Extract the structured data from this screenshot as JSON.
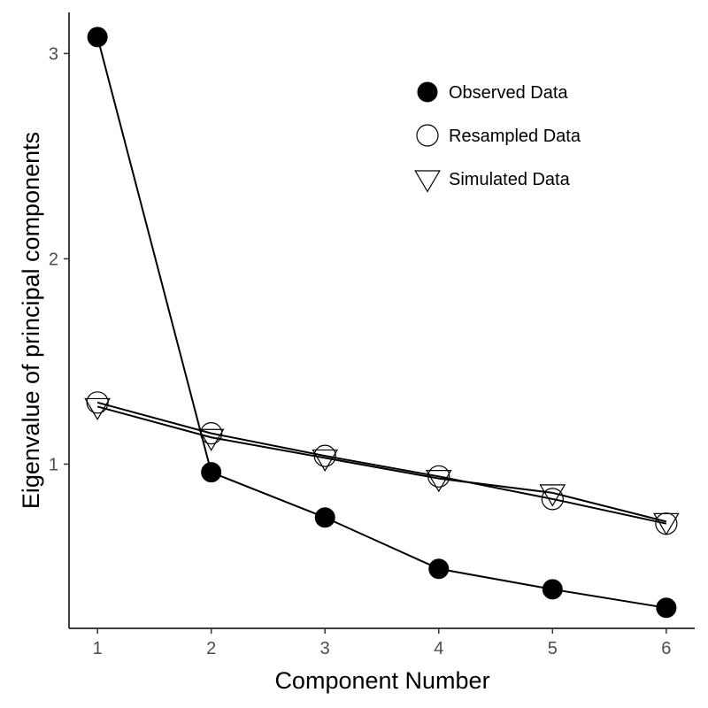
{
  "chart_data": {
    "type": "line",
    "xlabel": "Component Number",
    "ylabel": "Eigenvalue of principal components",
    "x": [
      1,
      2,
      3,
      4,
      5,
      6
    ],
    "xlim": [
      0.75,
      6.25
    ],
    "ylim": [
      0.2,
      3.2
    ],
    "xticks": [
      "1",
      "2",
      "3",
      "4",
      "5",
      "6"
    ],
    "yticks": [
      "1",
      "2",
      "3"
    ],
    "grid": false,
    "legend_position": "top-right",
    "series": [
      {
        "name": "Observed Data",
        "marker": "filled-circle",
        "values": [
          3.08,
          0.96,
          0.74,
          0.49,
          0.39,
          0.3
        ]
      },
      {
        "name": "Resampled Data",
        "marker": "open-circle",
        "values": [
          1.3,
          1.15,
          1.04,
          0.94,
          0.83,
          0.71
        ]
      },
      {
        "name": "Simulated Data",
        "marker": "open-triangle-down",
        "values": [
          1.28,
          1.13,
          1.03,
          0.93,
          0.86,
          0.72
        ]
      }
    ],
    "colors": {
      "line": "#000000",
      "marker_fill": "#000000",
      "tick_text": "#4d4d4d",
      "axis": "#000000"
    }
  }
}
